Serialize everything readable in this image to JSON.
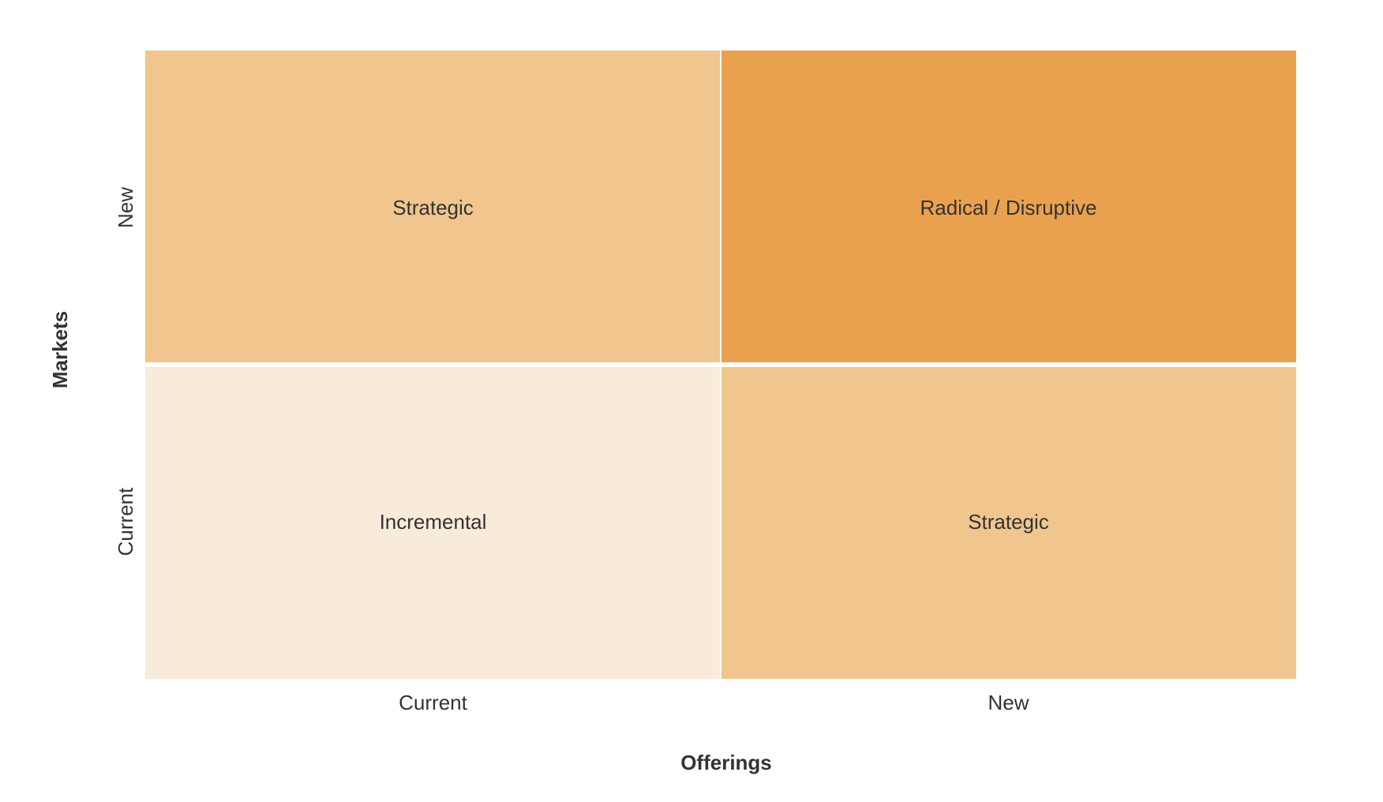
{
  "chart_data": {
    "type": "heatmap",
    "title": "",
    "xlabel": "Offerings",
    "ylabel": "Markets",
    "x_categories": [
      "Current",
      "New"
    ],
    "y_categories": [
      "Current",
      "New"
    ],
    "cells": [
      {
        "x": "Current",
        "y": "New",
        "label": "Strategic",
        "color": "#F0C68E"
      },
      {
        "x": "New",
        "y": "New",
        "label": "Radical / Disruptive",
        "color": "#EAA14E"
      },
      {
        "x": "Current",
        "y": "Current",
        "label": "Incremental",
        "color": "#F8EBD9"
      },
      {
        "x": "New",
        "y": "Current",
        "label": "Strategic",
        "color": "#F0C68E"
      }
    ],
    "grid": false,
    "legend": "none"
  }
}
